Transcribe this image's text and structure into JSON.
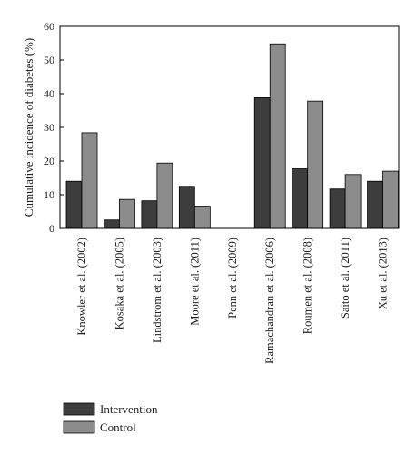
{
  "chart_data": {
    "type": "bar",
    "title": "",
    "xlabel": "",
    "ylabel": "Cumulative incidence of diabetes (%)",
    "ylim": [
      0,
      60
    ],
    "yticks": [
      0,
      10,
      20,
      30,
      40,
      50,
      60
    ],
    "grid": false,
    "legend_position": "bottom-left",
    "categories": [
      "Knowler et al. (2002)",
      "Kosaka et al. (2005)",
      "Lindström et al. (2003)",
      "Moore et al. (2011)",
      "Penn et al. (2009)",
      "Ramachandran et al. (2006)",
      "Roumen et al. (2008)",
      "Saito et al. (2011)",
      "Xu et al. (2013)"
    ],
    "series": [
      {
        "name": "Intervention",
        "color": "#3d3d3d",
        "values": [
          14.0,
          2.5,
          8.2,
          12.5,
          0,
          38.8,
          17.7,
          11.7,
          14.0
        ]
      },
      {
        "name": "Control",
        "color": "#8c8c8c",
        "values": [
          28.4,
          8.6,
          19.4,
          6.6,
          0,
          54.8,
          37.8,
          16.0,
          17.0
        ]
      }
    ]
  }
}
